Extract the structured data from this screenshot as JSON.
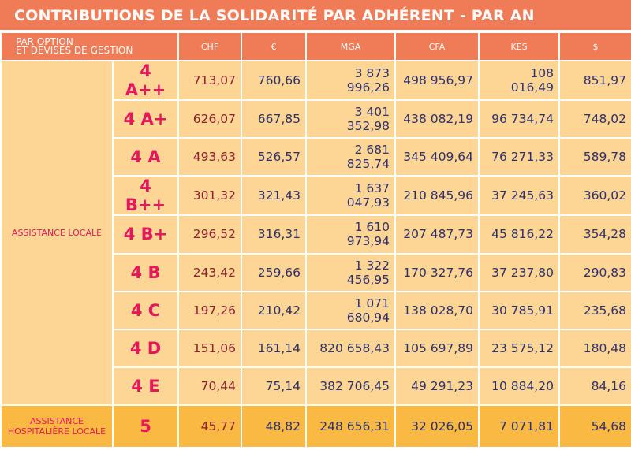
{
  "title": "CONTRIBUTIONS DE LA SOLIDARITÉ PAR ADHÉRENT - PAR AN",
  "header": {
    "label_line1": "PAR OPTION",
    "label_line2": "ET DEVISES DE GESTION",
    "currencies": [
      "CHF",
      "€",
      "MGA",
      "CFA",
      "KES",
      "$"
    ]
  },
  "groups": {
    "local": "ASSISTANCE LOCALE",
    "hosp": "ASSISTANCE HOSPITALIÈRE LOCALE"
  },
  "rows": [
    {
      "option": "4 A++",
      "values": [
        "713,07",
        "760,66",
        "3 873 996,26",
        "498 956,97",
        "108 016,49",
        "851,97"
      ]
    },
    {
      "option": "4 A+",
      "values": [
        "626,07",
        "667,85",
        "3 401 352,98",
        "438 082,19",
        "96 734,74",
        "748,02"
      ]
    },
    {
      "option": "4 A",
      "values": [
        "493,63",
        "526,57",
        "2 681 825,74",
        "345 409,64",
        "76 271,33",
        "589,78"
      ]
    },
    {
      "option": "4 B++",
      "values": [
        "301,32",
        "321,43",
        "1 637 047,93",
        "210 845,96",
        "37 245,63",
        "360,02"
      ]
    },
    {
      "option": "4 B+",
      "values": [
        "296,52",
        "316,31",
        "1 610 973,94",
        "207 487,73",
        "45 816,22",
        "354,28"
      ]
    },
    {
      "option": "4 B",
      "values": [
        "243,42",
        "259,66",
        "1 322 456,95",
        "170 327,76",
        "37 237,80",
        "290,83"
      ]
    },
    {
      "option": "4 C",
      "values": [
        "197,26",
        "210,42",
        "1 071 680,94",
        "138 028,70",
        "30 785,91",
        "235,68"
      ]
    },
    {
      "option": "4 D",
      "values": [
        "151,06",
        "161,14",
        "820 658,43",
        "105 697,89",
        "23 575,12",
        "180,48"
      ]
    },
    {
      "option": "4 E",
      "values": [
        "70,44",
        "75,14",
        "382 706,45",
        "49 291,23",
        "10 884,20",
        "84,16"
      ]
    },
    {
      "option": "5",
      "values": [
        "45,77",
        "48,82",
        "248 656,31",
        "32 026,05",
        "7 071,81",
        "54,68"
      ]
    }
  ]
}
